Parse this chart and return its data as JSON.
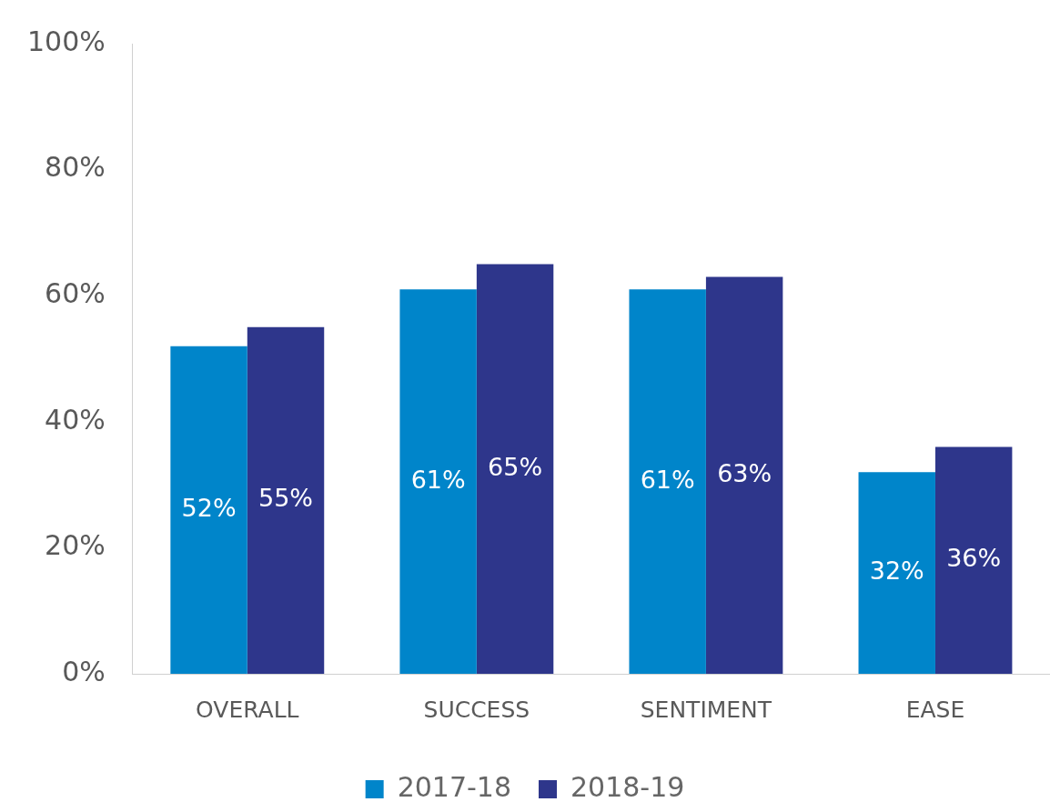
{
  "chart_data": {
    "type": "bar",
    "categories": [
      "OVERALL",
      "SUCCESS",
      "SENTIMENT",
      "EASE"
    ],
    "series": [
      {
        "name": "2017-18",
        "color": "#0085ca",
        "values": [
          52,
          61,
          61,
          32
        ],
        "value_labels": [
          "52%",
          "61%",
          "61%",
          "32%"
        ]
      },
      {
        "name": "2018-19",
        "color": "#2e368b",
        "values": [
          55,
          65,
          63,
          36
        ],
        "value_labels": [
          "55%",
          "65%",
          "63%",
          "36%"
        ]
      }
    ],
    "ylim": [
      0,
      100
    ],
    "yticks": [
      {
        "value": 0,
        "label": "0%"
      },
      {
        "value": 20,
        "label": "20%"
      },
      {
        "value": 40,
        "label": "40%"
      },
      {
        "value": 60,
        "label": "60%"
      },
      {
        "value": 80,
        "label": "80%"
      },
      {
        "value": 100,
        "label": "100%"
      }
    ],
    "grid": false,
    "legend": "bottom"
  }
}
